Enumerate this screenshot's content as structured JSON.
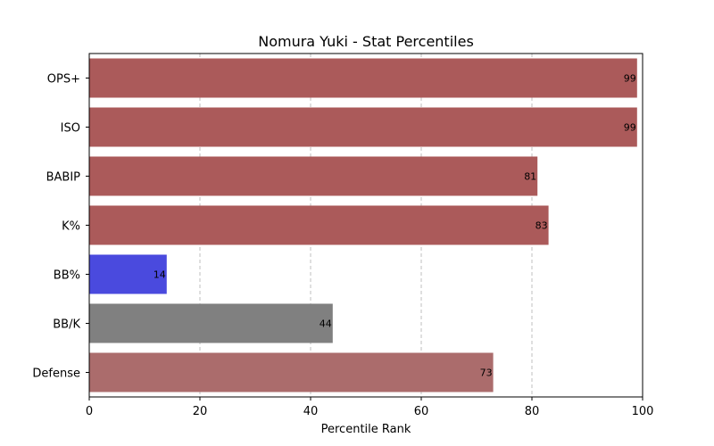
{
  "chart_data": {
    "type": "bar",
    "orientation": "horizontal",
    "title": "Nomura Yuki - Stat Percentiles",
    "xlabel": "Percentile Rank",
    "ylabel": "",
    "xlim": [
      0,
      100
    ],
    "xticks": [
      0,
      20,
      40,
      60,
      80,
      100
    ],
    "grid": "x",
    "categories": [
      "OPS+",
      "ISO",
      "BABIP",
      "K%",
      "BB%",
      "BB/K",
      "Defense"
    ],
    "values": [
      99,
      99,
      81,
      83,
      14,
      44,
      73
    ],
    "colors": [
      "#ab5a5a",
      "#ab5a5a",
      "#ab5a5a",
      "#ab5a5a",
      "#4a4ade",
      "#808080",
      "#ab6c6c"
    ]
  }
}
